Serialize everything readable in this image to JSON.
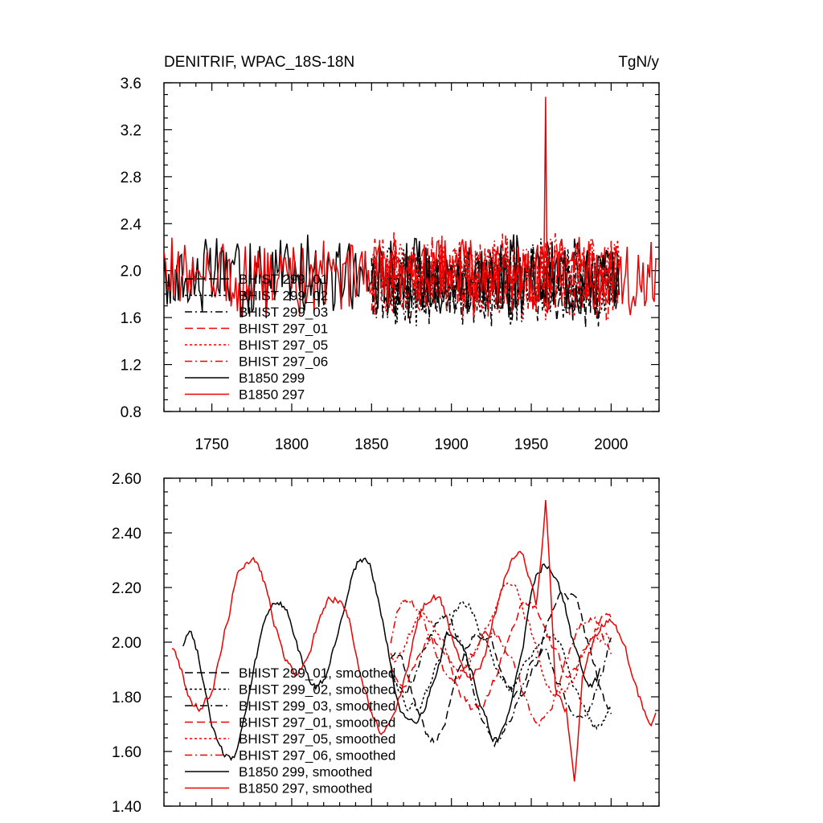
{
  "colors": {
    "black": "#000000",
    "red": "#ee0000",
    "background": "#ffffff"
  },
  "chart_data": [
    {
      "type": "line",
      "title_left": "DENITRIF, WPAC_18S-18N",
      "title_right": "TgN/y",
      "xlim": [
        1720,
        2030
      ],
      "ylim": [
        0.8,
        3.6
      ],
      "xticks": [
        1750,
        1800,
        1850,
        1900,
        1950,
        2000
      ],
      "xtick_labels": [
        "1750",
        "1800",
        "1850",
        "1900",
        "1950",
        "2000"
      ],
      "yticks": [
        0.8,
        1.2,
        1.6,
        2.0,
        2.4,
        2.8,
        3.2,
        3.6
      ],
      "ytick_labels": [
        "0.8",
        "1.2",
        "1.6",
        "2.0",
        "2.4",
        "2.8",
        "3.2",
        "3.6"
      ],
      "legend_position": "lower-left",
      "series": [
        {
          "name": "BHIST 299_01",
          "label": "BHIST 299_01",
          "color": "#000000",
          "dash": "dashed",
          "x_start": 1850,
          "x_end": 2005,
          "mean": 1.9,
          "amp": 0.3,
          "seed": 11
        },
        {
          "name": "BHIST 299_02",
          "label": "BHIST 299_02",
          "color": "#000000",
          "dash": "dotted",
          "x_start": 1850,
          "x_end": 2005,
          "mean": 1.9,
          "amp": 0.3,
          "seed": 12
        },
        {
          "name": "BHIST 299_03",
          "label": "BHIST 299_03",
          "color": "#000000",
          "dash": "dashdot",
          "x_start": 1850,
          "x_end": 2005,
          "mean": 1.88,
          "amp": 0.3,
          "seed": 13
        },
        {
          "name": "BHIST 297_01",
          "label": "BHIST 297_01",
          "color": "#ee0000",
          "dash": "dashed",
          "x_start": 1850,
          "x_end": 2005,
          "mean": 1.95,
          "amp": 0.3,
          "seed": 14
        },
        {
          "name": "BHIST 297_05",
          "label": "BHIST 297_05",
          "color": "#ee0000",
          "dash": "dotted",
          "x_start": 1850,
          "x_end": 2005,
          "mean": 1.95,
          "amp": 0.3,
          "seed": 15
        },
        {
          "name": "BHIST 297_06",
          "label": "BHIST 297_06",
          "color": "#ee0000",
          "dash": "dashdot",
          "x_start": 1850,
          "x_end": 2005,
          "mean": 1.95,
          "amp": 0.3,
          "seed": 16
        },
        {
          "name": "B1850 299",
          "label": "B1850 299",
          "color": "#000000",
          "dash": "solid",
          "x_start": 1720,
          "x_end": 2005,
          "mean": 1.95,
          "amp": 0.3,
          "seed": 17
        },
        {
          "name": "B1850 297",
          "label": "B1850 297",
          "color": "#ee0000",
          "dash": "solid",
          "x_start": 1720,
          "x_end": 2028,
          "mean": 1.95,
          "amp": 0.28,
          "seed": 18,
          "spike_x": 1959,
          "spike_y": 3.48
        }
      ]
    },
    {
      "type": "line",
      "xlim": [
        1720,
        2030
      ],
      "ylim": [
        1.4,
        2.6
      ],
      "xticks": [
        1750,
        1800,
        1850,
        1900,
        1950,
        2000
      ],
      "yticks": [
        1.4,
        1.6,
        1.8,
        2.0,
        2.2,
        2.4,
        2.6
      ],
      "ytick_labels": [
        "1.40",
        "1.60",
        "1.80",
        "2.00",
        "2.20",
        "2.40",
        "2.60"
      ],
      "legend_position": "lower-left",
      "series": [
        {
          "name": "BHIST 299_01, smoothed",
          "label": "BHIST 299_01, smoothed",
          "color": "#000000",
          "dash": "dashed",
          "x_start": 1862,
          "x_end": 2000,
          "mean": 1.92,
          "amp": 0.18,
          "seed": 21
        },
        {
          "name": "BHIST 299_02, smoothed",
          "label": "BHIST 299_02, smoothed",
          "color": "#000000",
          "dash": "dotted",
          "x_start": 1862,
          "x_end": 2000,
          "mean": 1.92,
          "amp": 0.15,
          "seed": 22
        },
        {
          "name": "BHIST 299_03, smoothed",
          "label": "BHIST 299_03, smoothed",
          "color": "#000000",
          "dash": "dashdot",
          "x_start": 1862,
          "x_end": 2000,
          "mean": 1.88,
          "amp": 0.18,
          "seed": 23
        },
        {
          "name": "BHIST 297_01, smoothed",
          "label": "BHIST 297_01, smoothed",
          "color": "#ee0000",
          "dash": "dashed",
          "x_start": 1862,
          "x_end": 2000,
          "mean": 1.95,
          "amp": 0.15,
          "seed": 24
        },
        {
          "name": "BHIST 297_05, smoothed",
          "label": "BHIST 297_05, smoothed",
          "color": "#ee0000",
          "dash": "dotted",
          "x_start": 1862,
          "x_end": 2000,
          "mean": 1.98,
          "amp": 0.15,
          "seed": 25
        },
        {
          "name": "BHIST 297_06, smoothed",
          "label": "BHIST 297_06, smoothed",
          "color": "#ee0000",
          "dash": "dashdot",
          "x_start": 1862,
          "x_end": 2000,
          "mean": 1.95,
          "amp": 0.15,
          "seed": 26
        },
        {
          "name": "B1850 299, smoothed",
          "label": "B1850 299, smoothed",
          "color": "#000000",
          "dash": "solid",
          "x_start": 1732,
          "x_end": 1993,
          "mean": 1.95,
          "amp": 0.25,
          "seed": 27
        },
        {
          "name": "B1850 297, smoothed",
          "label": "B1850 297, smoothed",
          "color": "#ee0000",
          "dash": "solid",
          "x_start": 1725,
          "x_end": 2028,
          "mean": 2.0,
          "amp": 0.22,
          "seed": 28,
          "peak_x": 1959,
          "peak_y": 2.52,
          "trough_x": 1977,
          "trough_y": 1.49
        }
      ]
    }
  ]
}
